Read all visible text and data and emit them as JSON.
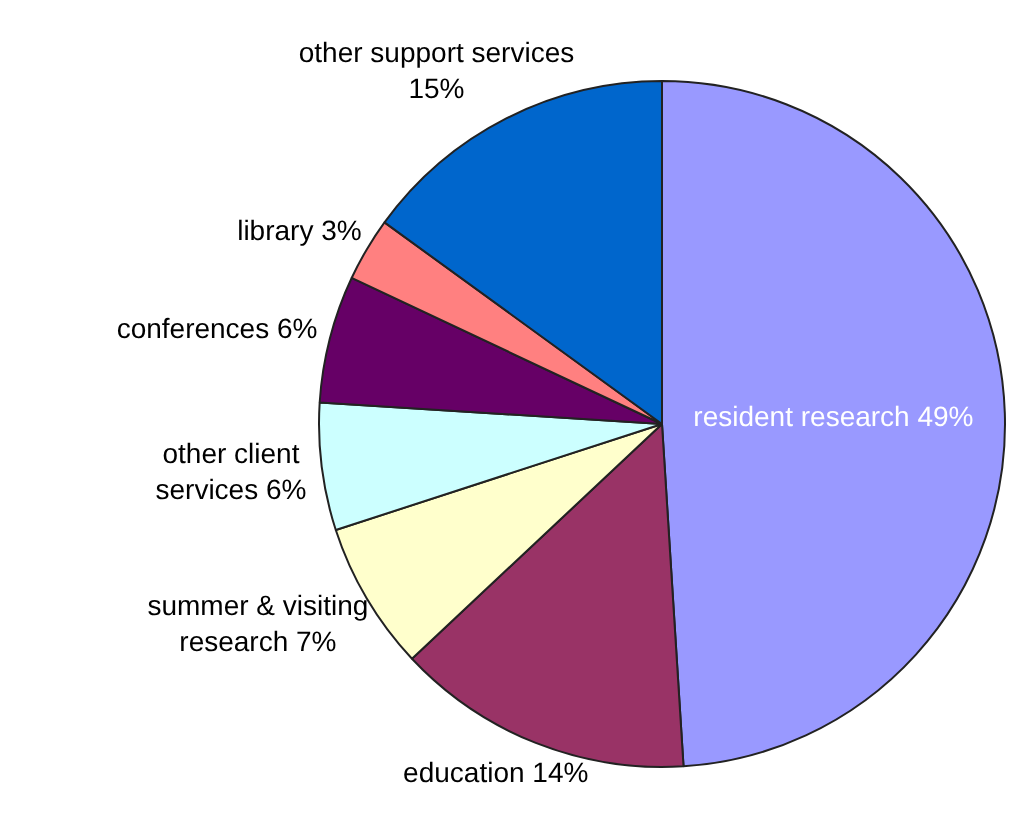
{
  "chart_data": {
    "type": "pie",
    "categories": [
      "resident research",
      "education",
      "summer & visiting research",
      "other client services",
      "conferences",
      "library",
      "other support services"
    ],
    "values": [
      49,
      14,
      7,
      6,
      6,
      3,
      15
    ],
    "colors": [
      "#9999ff",
      "#993366",
      "#ffffcc",
      "#ccffff",
      "#660066",
      "#ff8080",
      "#0066cc"
    ],
    "value_labels": [
      "49%",
      "14%",
      "7%",
      "6%",
      "6%",
      "3%",
      "15%"
    ],
    "legend": false
  }
}
